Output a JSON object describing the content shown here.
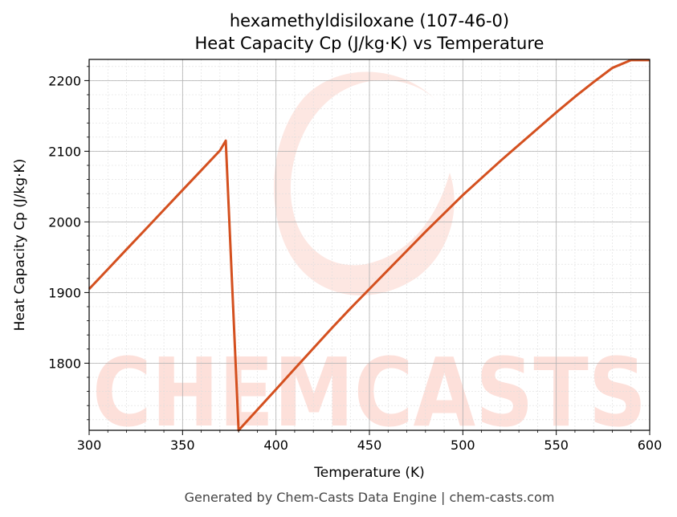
{
  "chart_data": {
    "type": "line",
    "title": [
      "hexamethyldisiloxane (107-46-0)",
      "Heat Capacity Cp (J/kg·K) vs Temperature"
    ],
    "xlabel": "Temperature (K)",
    "ylabel": "Heat Capacity Cp (J/kg·K)",
    "xlim": [
      300,
      600
    ],
    "ylim": [
      1705,
      2230
    ],
    "xticks": [
      300,
      350,
      400,
      450,
      500,
      550,
      600
    ],
    "yticks": [
      1800,
      1900,
      2000,
      2100,
      2200
    ],
    "grid": true,
    "series": [
      {
        "color": "#d4501f",
        "x": [
          300,
          310,
          320,
          330,
          340,
          350,
          360,
          370,
          373.1,
          380,
          390,
          400,
          410,
          420,
          430,
          440,
          450,
          460,
          470,
          480,
          490,
          500,
          510,
          520,
          530,
          540,
          550,
          560,
          570,
          580,
          590,
          600
        ],
        "y": [
          1905,
          1933,
          1961,
          1989,
          2017,
          2045,
          2073,
          2101,
          2115,
          1705,
          1734,
          1763,
          1792,
          1821,
          1850,
          1878,
          1905,
          1932,
          1959,
          1986,
          2012,
          2038,
          2062,
          2086,
          2109,
          2132,
          2155,
          2177,
          2198,
          2218,
          2229,
          2229
        ]
      }
    ]
  },
  "watermark": {
    "text": "CHEMCASTS",
    "color": "#fdd9d2"
  },
  "footer": "Generated by Chem-Casts Data Engine | chem-casts.com"
}
